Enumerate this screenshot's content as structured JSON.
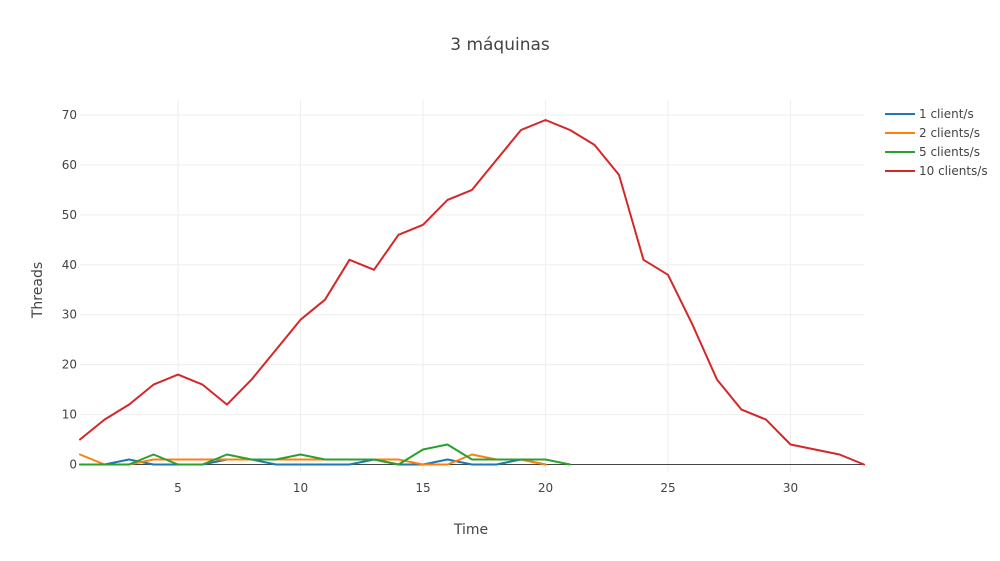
{
  "chart_data": {
    "type": "line",
    "title": "3 máquinas",
    "xlabel": "Time",
    "ylabel": "Threads",
    "xlim": [
      1,
      33
    ],
    "ylim": [
      -1.5,
      73
    ],
    "xticks": [
      5,
      10,
      15,
      20,
      25,
      30
    ],
    "yticks": [
      0,
      10,
      20,
      30,
      40,
      50,
      60,
      70
    ],
    "grid": true,
    "legend_position": "top-right",
    "series": [
      {
        "name": "1 client/s",
        "color": "#1f77b4",
        "x": [
          1,
          2,
          3,
          4,
          5,
          6,
          7,
          8,
          9,
          10,
          11,
          12,
          13,
          14,
          15,
          16,
          17,
          18,
          19,
          20
        ],
        "y": [
          0,
          0,
          1,
          0,
          0,
          0,
          1,
          1,
          0,
          0,
          0,
          0,
          1,
          0,
          0,
          1,
          0,
          0,
          1,
          0
        ]
      },
      {
        "name": "2 clients/s",
        "color": "#ff7f0e",
        "x": [
          1,
          2,
          3,
          4,
          5,
          6,
          7,
          8,
          9,
          10,
          11,
          12,
          13,
          14,
          15,
          16,
          17,
          18,
          19,
          20
        ],
        "y": [
          2,
          0,
          0,
          1,
          1,
          1,
          1,
          1,
          1,
          1,
          1,
          1,
          1,
          1,
          0,
          0,
          2,
          1,
          1,
          0
        ]
      },
      {
        "name": "5 clients/s",
        "color": "#2ca02c",
        "x": [
          1,
          2,
          3,
          4,
          5,
          6,
          7,
          8,
          9,
          10,
          11,
          12,
          13,
          14,
          15,
          16,
          17,
          18,
          19,
          20,
          21
        ],
        "y": [
          0,
          0,
          0,
          2,
          0,
          0,
          2,
          1,
          1,
          2,
          1,
          1,
          1,
          0,
          3,
          4,
          1,
          1,
          1,
          1,
          0
        ]
      },
      {
        "name": "10 clients/s",
        "color": "#d62728",
        "x": [
          1,
          2,
          3,
          4,
          5,
          6,
          7,
          8,
          9,
          10,
          11,
          12,
          13,
          14,
          15,
          16,
          17,
          18,
          19,
          20,
          21,
          22,
          23,
          24,
          25,
          26,
          27,
          28,
          29,
          30,
          31,
          32,
          33
        ],
        "y": [
          5,
          9,
          12,
          16,
          18,
          16,
          12,
          17,
          23,
          29,
          33,
          41,
          39,
          46,
          48,
          53,
          55,
          61,
          67,
          69,
          67,
          64,
          58,
          41,
          38,
          28,
          17,
          11,
          9,
          4,
          3,
          2,
          0
        ]
      }
    ]
  }
}
